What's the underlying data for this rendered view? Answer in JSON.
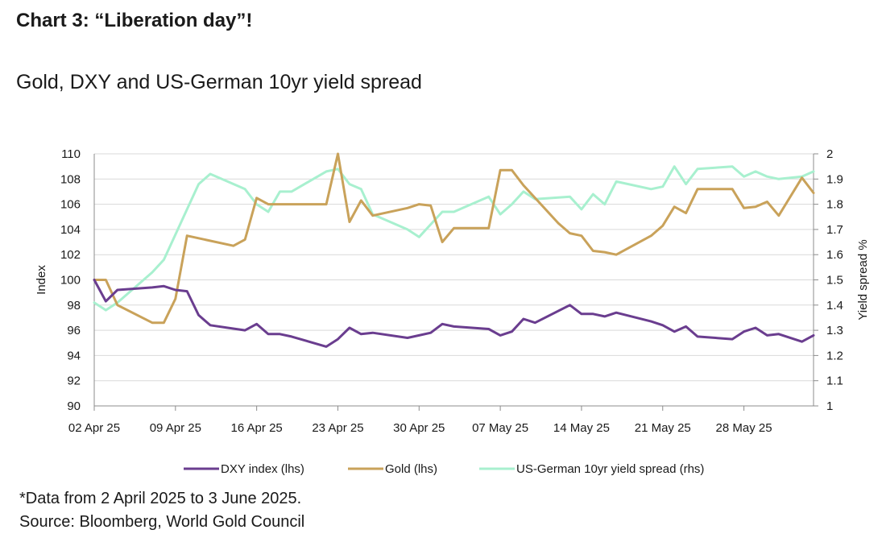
{
  "header": {
    "chart_number": "Chart 3",
    "chart_title": "“Liberation day”!",
    "subtitle": "Gold, DXY and US-German 10yr yield spread"
  },
  "footnote": {
    "data_note": "*Data from 2 April 2025 to 3 June 2025.",
    "source": "Source: Bloomberg, World Gold Council"
  },
  "colors": {
    "dxy": "#6a3d8f",
    "gold": "#c9a25a",
    "spread": "#a8f0cf",
    "grid": "#d9d9d9",
    "axis": "#8c8c8c",
    "text": "#1a1a1a"
  },
  "chart_data": {
    "type": "line",
    "title": "Gold, DXY and US-German 10yr yield spread",
    "ylabel": "Index",
    "y2label": "Yield spread %",
    "ylim": [
      90,
      110
    ],
    "y2lim": [
      1,
      2
    ],
    "yticks": [
      "90",
      "92",
      "94",
      "96",
      "98",
      "100",
      "102",
      "104",
      "106",
      "108",
      "110"
    ],
    "y2ticks": [
      "1",
      "1.1",
      "1.2",
      "1.3",
      "1.4",
      "1.5",
      "1.6",
      "1.7",
      "1.8",
      "1.9",
      "2"
    ],
    "xlim": [
      "2025-04-02",
      "2025-06-03"
    ],
    "xticks": [
      {
        "date": "2025-04-02",
        "label": "02 Apr 25"
      },
      {
        "date": "2025-04-09",
        "label": "09 Apr 25"
      },
      {
        "date": "2025-04-16",
        "label": "16 Apr 25"
      },
      {
        "date": "2025-04-23",
        "label": "23 Apr 25"
      },
      {
        "date": "2025-04-30",
        "label": "30 Apr 25"
      },
      {
        "date": "2025-05-07",
        "label": "07 May 25"
      },
      {
        "date": "2025-05-14",
        "label": "14 May 25"
      },
      {
        "date": "2025-05-21",
        "label": "21 May 25"
      },
      {
        "date": "2025-05-28",
        "label": "28 May 25"
      }
    ],
    "grid": true,
    "legend_position": "bottom",
    "series": [
      {
        "name": "DXY index (lhs)",
        "axis": "left",
        "data": [
          [
            "2025-04-02",
            100.0
          ],
          [
            "2025-04-03",
            98.3
          ],
          [
            "2025-04-04",
            99.2
          ],
          [
            "2025-04-07",
            99.4
          ],
          [
            "2025-04-08",
            99.5
          ],
          [
            "2025-04-09",
            99.2
          ],
          [
            "2025-04-10",
            99.1
          ],
          [
            "2025-04-11",
            97.2
          ],
          [
            "2025-04-12",
            96.4
          ],
          [
            "2025-04-15",
            96.0
          ],
          [
            "2025-04-16",
            96.5
          ],
          [
            "2025-04-17",
            95.7
          ],
          [
            "2025-04-18",
            95.7
          ],
          [
            "2025-04-19",
            95.5
          ],
          [
            "2025-04-22",
            94.7
          ],
          [
            "2025-04-23",
            95.3
          ],
          [
            "2025-04-24",
            96.2
          ],
          [
            "2025-04-25",
            95.7
          ],
          [
            "2025-04-26",
            95.8
          ],
          [
            "2025-04-29",
            95.4
          ],
          [
            "2025-04-30",
            95.6
          ],
          [
            "2025-05-01",
            95.8
          ],
          [
            "2025-05-02",
            96.5
          ],
          [
            "2025-05-03",
            96.3
          ],
          [
            "2025-05-06",
            96.1
          ],
          [
            "2025-05-07",
            95.6
          ],
          [
            "2025-05-08",
            95.9
          ],
          [
            "2025-05-09",
            96.9
          ],
          [
            "2025-05-10",
            96.6
          ],
          [
            "2025-05-13",
            98.0
          ],
          [
            "2025-05-14",
            97.3
          ],
          [
            "2025-05-15",
            97.3
          ],
          [
            "2025-05-16",
            97.1
          ],
          [
            "2025-05-17",
            97.4
          ],
          [
            "2025-05-20",
            96.7
          ],
          [
            "2025-05-21",
            96.4
          ],
          [
            "2025-05-22",
            95.9
          ],
          [
            "2025-05-23",
            96.3
          ],
          [
            "2025-05-24",
            95.5
          ],
          [
            "2025-05-27",
            95.3
          ],
          [
            "2025-05-28",
            95.9
          ],
          [
            "2025-05-29",
            96.2
          ],
          [
            "2025-05-30",
            95.6
          ],
          [
            "2025-05-31",
            95.7
          ],
          [
            "2025-06-02",
            95.1
          ],
          [
            "2025-06-03",
            95.6
          ]
        ]
      },
      {
        "name": "Gold (lhs)",
        "axis": "left",
        "data": [
          [
            "2025-04-02",
            100.0
          ],
          [
            "2025-04-03",
            100.0
          ],
          [
            "2025-04-04",
            98.0
          ],
          [
            "2025-04-07",
            96.6
          ],
          [
            "2025-04-08",
            96.6
          ],
          [
            "2025-04-09",
            98.5
          ],
          [
            "2025-04-10",
            103.5
          ],
          [
            "2025-04-14",
            102.7
          ],
          [
            "2025-04-15",
            103.2
          ],
          [
            "2025-04-16",
            106.5
          ],
          [
            "2025-04-17",
            106.0
          ],
          [
            "2025-04-22",
            106.0
          ],
          [
            "2025-04-23",
            110.0
          ],
          [
            "2025-04-24",
            104.6
          ],
          [
            "2025-04-25",
            106.3
          ],
          [
            "2025-04-26",
            105.1
          ],
          [
            "2025-04-29",
            105.7
          ],
          [
            "2025-04-30",
            106.0
          ],
          [
            "2025-05-01",
            105.9
          ],
          [
            "2025-05-02",
            103.0
          ],
          [
            "2025-05-03",
            104.1
          ],
          [
            "2025-05-06",
            104.1
          ],
          [
            "2025-05-07",
            108.7
          ],
          [
            "2025-05-08",
            108.7
          ],
          [
            "2025-05-09",
            107.5
          ],
          [
            "2025-05-12",
            104.5
          ],
          [
            "2025-05-13",
            103.7
          ],
          [
            "2025-05-14",
            103.5
          ],
          [
            "2025-05-15",
            102.3
          ],
          [
            "2025-05-16",
            102.2
          ],
          [
            "2025-05-17",
            102.0
          ],
          [
            "2025-05-20",
            103.5
          ],
          [
            "2025-05-21",
            104.3
          ],
          [
            "2025-05-22",
            105.8
          ],
          [
            "2025-05-23",
            105.3
          ],
          [
            "2025-05-24",
            107.2
          ],
          [
            "2025-05-27",
            107.2
          ],
          [
            "2025-05-28",
            105.7
          ],
          [
            "2025-05-29",
            105.8
          ],
          [
            "2025-05-30",
            106.2
          ],
          [
            "2025-05-31",
            105.1
          ],
          [
            "2025-06-02",
            108.1
          ],
          [
            "2025-06-03",
            106.9
          ]
        ]
      },
      {
        "name": "US-German 10yr yield spread (rhs)",
        "axis": "right",
        "data": [
          [
            "2025-04-02",
            1.41
          ],
          [
            "2025-04-03",
            1.38
          ],
          [
            "2025-04-04",
            1.41
          ],
          [
            "2025-04-07",
            1.53
          ],
          [
            "2025-04-08",
            1.58
          ],
          [
            "2025-04-09",
            1.68
          ],
          [
            "2025-04-10",
            1.78
          ],
          [
            "2025-04-11",
            1.88
          ],
          [
            "2025-04-12",
            1.92
          ],
          [
            "2025-04-15",
            1.86
          ],
          [
            "2025-04-16",
            1.8
          ],
          [
            "2025-04-17",
            1.77
          ],
          [
            "2025-04-18",
            1.85
          ],
          [
            "2025-04-19",
            1.85
          ],
          [
            "2025-04-22",
            1.93
          ],
          [
            "2025-04-23",
            1.94
          ],
          [
            "2025-04-24",
            1.88
          ],
          [
            "2025-04-25",
            1.86
          ],
          [
            "2025-04-26",
            1.76
          ],
          [
            "2025-04-29",
            1.7
          ],
          [
            "2025-04-30",
            1.67
          ],
          [
            "2025-05-01",
            1.72
          ],
          [
            "2025-05-02",
            1.77
          ],
          [
            "2025-05-03",
            1.77
          ],
          [
            "2025-05-06",
            1.83
          ],
          [
            "2025-05-07",
            1.76
          ],
          [
            "2025-05-08",
            1.8
          ],
          [
            "2025-05-09",
            1.85
          ],
          [
            "2025-05-10",
            1.82
          ],
          [
            "2025-05-13",
            1.83
          ],
          [
            "2025-05-14",
            1.78
          ],
          [
            "2025-05-15",
            1.84
          ],
          [
            "2025-05-16",
            1.8
          ],
          [
            "2025-05-17",
            1.89
          ],
          [
            "2025-05-20",
            1.86
          ],
          [
            "2025-05-21",
            1.87
          ],
          [
            "2025-05-22",
            1.95
          ],
          [
            "2025-05-23",
            1.88
          ],
          [
            "2025-05-24",
            1.94
          ],
          [
            "2025-05-27",
            1.95
          ],
          [
            "2025-05-28",
            1.91
          ],
          [
            "2025-05-29",
            1.93
          ],
          [
            "2025-05-30",
            1.91
          ],
          [
            "2025-05-31",
            1.9
          ],
          [
            "2025-06-02",
            1.91
          ],
          [
            "2025-06-03",
            1.93
          ]
        ]
      }
    ]
  }
}
